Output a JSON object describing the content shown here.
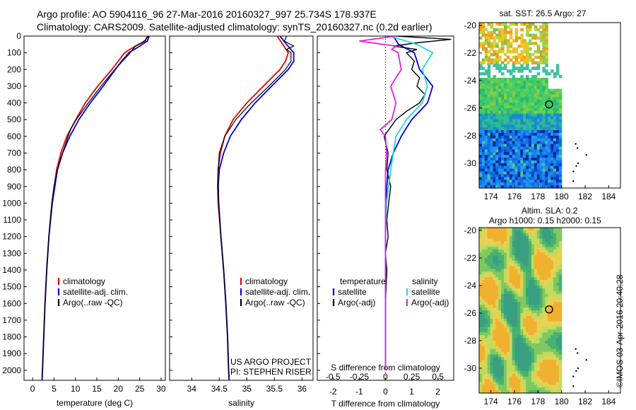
{
  "header": {
    "line1": "Argo profile: AO 5904116_96 27-Mar-2016 20160327_997 25.734S 178.937E",
    "line2": "Climatology: CARS2009. Satellite-adjusted climatology: synTS_20160327.nc (0.2d earlier)"
  },
  "watermark": "©IMOS 03-Apr-2016 20:40:28",
  "colors": {
    "climatology": "#e00000",
    "satellite": "#0000e0",
    "argo": "#000000",
    "satellite_s": "#20d8e0",
    "argo_s": "#e020e0"
  },
  "chart_data": [
    {
      "type": "line",
      "xlabel": "temperature (deg C)",
      "ylabel": "",
      "xlim": [
        -2,
        31
      ],
      "ylim": [
        2060,
        0
      ],
      "xticks": [
        "0",
        "5",
        "10",
        "15",
        "20",
        "25",
        "30"
      ],
      "yticks": [
        "0",
        "100",
        "200",
        "300",
        "400",
        "500",
        "600",
        "700",
        "800",
        "900",
        "1000",
        "1100",
        "1200",
        "1300",
        "1400",
        "1500",
        "1600",
        "1700",
        "1800",
        "1900",
        "2000"
      ],
      "legend": [
        "climatology",
        "satellite-adj. clim.",
        "Argo(..raw -QC)"
      ],
      "series": [
        {
          "name": "climatology",
          "depth": [
            0,
            30,
            60,
            100,
            150,
            200,
            300,
            400,
            500,
            600,
            700,
            800,
            1000,
            1200,
            1400,
            1600,
            1800,
            2000,
            2060
          ],
          "values": [
            26.8,
            26.3,
            24,
            21.5,
            20,
            18.5,
            15.2,
            12.3,
            10.1,
            8,
            6.6,
            5.6,
            4.5,
            3.8,
            3.3,
            2.9,
            2.6,
            2.3,
            2.2
          ]
        },
        {
          "name": "satellite-adj. clim.",
          "depth": [
            0,
            30,
            60,
            100,
            150,
            200,
            300,
            400,
            500,
            600,
            700,
            800,
            1000,
            1200,
            1400,
            1600,
            1800,
            2000,
            2060
          ],
          "values": [
            27.2,
            26.8,
            25,
            22.5,
            20.8,
            19.3,
            16.5,
            13.5,
            10.8,
            8.7,
            7,
            5.8,
            4.6,
            3.8,
            3.3,
            2.9,
            2.6,
            2.3,
            2.2
          ]
        },
        {
          "name": "Argo(..raw -QC)",
          "depth": [
            0,
            20,
            40,
            60,
            100,
            150,
            200,
            300,
            400,
            500,
            550,
            600,
            700,
            800,
            900,
            1000,
            1200,
            1400,
            1600,
            1800,
            2000,
            2040
          ],
          "values": [
            27,
            26.5,
            25.5,
            24,
            22.8,
            21,
            19.2,
            16,
            13,
            10.2,
            9,
            8.3,
            7,
            5.8,
            5,
            4.5,
            3.8,
            3.3,
            2.9,
            2.6,
            2.3,
            2.2
          ]
        }
      ]
    },
    {
      "type": "line",
      "xlabel": "salinity",
      "ylabel": "",
      "xlim": [
        33.6,
        36.2
      ],
      "ylim": [
        2060,
        0
      ],
      "xticks": [
        "34",
        "34.5",
        "35",
        "35.5",
        "36"
      ],
      "legend": [
        "climatology",
        "satellite-adj. clim.",
        "Argo(..raw -QC)"
      ],
      "series": [
        {
          "name": "climatology",
          "depth": [
            0,
            50,
            100,
            150,
            200,
            300,
            400,
            500,
            600,
            700,
            800,
            900,
            1000,
            1200,
            1400,
            1600,
            1800,
            2000,
            2060
          ],
          "values": [
            35.55,
            35.65,
            35.75,
            35.7,
            35.6,
            35.3,
            35.0,
            34.75,
            34.6,
            34.52,
            34.48,
            34.47,
            34.48,
            34.53,
            34.58,
            34.62,
            34.65,
            34.67,
            34.68
          ]
        },
        {
          "name": "satellite-adj. clim.",
          "depth": [
            0,
            50,
            100,
            150,
            200,
            300,
            400,
            500,
            600,
            700,
            800,
            900,
            1000,
            1200,
            1400,
            1600,
            1800,
            2000,
            2060
          ],
          "values": [
            35.6,
            35.72,
            35.85,
            35.85,
            35.75,
            35.45,
            35.15,
            34.9,
            34.7,
            34.58,
            34.5,
            34.48,
            34.49,
            34.53,
            34.58,
            34.62,
            34.65,
            34.67,
            34.68
          ]
        },
        {
          "name": "Argo(..raw -QC)",
          "depth": [
            0,
            30,
            60,
            80,
            100,
            150,
            200,
            300,
            400,
            500,
            600,
            700,
            800,
            1000,
            1200,
            1400,
            1600,
            1800,
            2000,
            2040
          ],
          "values": [
            35.72,
            35.68,
            35.85,
            35.72,
            35.8,
            35.8,
            35.7,
            35.4,
            35.08,
            34.8,
            34.6,
            34.5,
            34.48,
            34.49,
            34.53,
            34.58,
            34.62,
            34.65,
            34.67,
            34.68
          ]
        }
      ],
      "credits": [
        "US ARGO PROJECT",
        "PI: STEPHEN RISER"
      ]
    },
    {
      "type": "line",
      "xlabel": "T difference from climatology",
      "xlabel2": "S difference from climatology",
      "xlim": [
        -2.6,
        2.6
      ],
      "ylim": [
        2060,
        0
      ],
      "xticks": [
        "-2",
        "-1",
        "0",
        "1",
        "2"
      ],
      "xticks2": [
        "-0.5",
        "-0.25",
        "0",
        "0.25",
        "0.5"
      ],
      "legend_titles": [
        "temperature",
        "salinity"
      ],
      "legend": [
        "satellite",
        "Argo(-adj)",
        "satellite",
        "Argo(-adj)"
      ],
      "series": [
        {
          "name": "satellite",
          "depth": [
            0,
            50,
            100,
            200,
            300,
            400,
            500,
            600,
            700,
            800,
            900,
            1000,
            1200,
            1400,
            1600,
            1800,
            2000
          ],
          "values": [
            0.3,
            0.5,
            1.1,
            1.3,
            1.8,
            1.6,
            1.0,
            0.6,
            0.3,
            0.1,
            0.05,
            0.02,
            0,
            0,
            0,
            0,
            0
          ]
        },
        {
          "name": "Argo(-adj)",
          "depth": [
            0,
            20,
            40,
            60,
            80,
            100,
            150,
            200,
            250,
            300,
            350,
            400,
            450,
            500,
            600,
            700,
            800,
            900,
            1000,
            1100,
            1200,
            1300,
            1400,
            1600,
            1800,
            2000
          ],
          "values": [
            0.4,
            2.5,
            1.2,
            0.3,
            1.2,
            0.8,
            1.1,
            1.0,
            1.3,
            1.2,
            1.5,
            1.3,
            0.8,
            0.4,
            -0.05,
            0.1,
            0.05,
            0.2,
            0.12,
            0.05,
            0.1,
            0,
            0.05,
            0,
            0,
            0
          ]
        },
        {
          "name": "satellite",
          "depth": [
            0,
            50,
            100,
            200,
            300,
            400,
            500,
            600,
            800,
            1000,
            1200,
            1400,
            1600,
            1800,
            2000
          ],
          "values": [
            0.04,
            0.3,
            0.45,
            0.35,
            0.4,
            0.35,
            0.2,
            0.1,
            0.05,
            0.01,
            0,
            0,
            0,
            0,
            0
          ]
        },
        {
          "name": "Argo(-adj)",
          "depth": [
            0,
            30,
            60,
            80,
            100,
            200,
            300,
            400,
            500,
            560,
            600,
            700,
            800,
            1000,
            1200,
            1400,
            1600,
            1800,
            2000
          ],
          "values": [
            0.1,
            -0.25,
            0.1,
            0.06,
            0.12,
            0.15,
            0.05,
            0.1,
            0.06,
            -0.05,
            0.0,
            0.01,
            0,
            0,
            0,
            0,
            0,
            0,
            0
          ]
        }
      ]
    },
    {
      "type": "heatmap",
      "title": "sat. SST: 26.5 Argo: 27",
      "yticks": [
        "-20",
        "-22",
        "-24",
        "-26",
        "-28",
        "-30"
      ],
      "xticks": [
        "174",
        "176",
        "178",
        "180",
        "182",
        "184"
      ],
      "xlim": [
        173,
        185
      ],
      "ylim": [
        -31.8,
        -19.8
      ],
      "marker": {
        "lon": 178.937,
        "lat": -25.734
      }
    },
    {
      "type": "heatmap",
      "title": "Altim. SLA: 0.2",
      "subtitle": "Argo h1000: 0.15 h2000: 0.15",
      "yticks": [
        "-20",
        "-22",
        "-24",
        "-26",
        "-28",
        "-30"
      ],
      "xticks": [
        "174",
        "176",
        "178",
        "180",
        "182",
        "184"
      ],
      "xlim": [
        173,
        185
      ],
      "ylim": [
        -31.8,
        -19.8
      ],
      "marker": {
        "lon": 178.937,
        "lat": -25.734
      }
    }
  ]
}
